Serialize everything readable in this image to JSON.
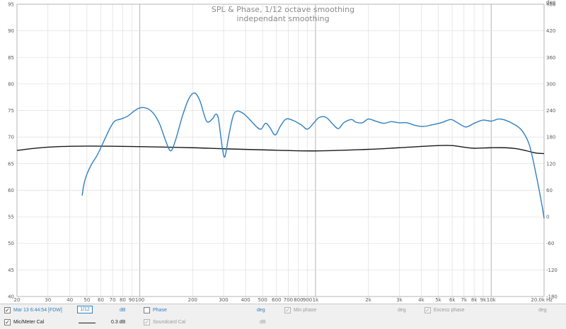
{
  "chart_data": {
    "type": "line",
    "title": "SPL & Phase, 1/12 octave smoothing",
    "subtitle": "independant smoothing",
    "x_scale": "log",
    "xlim": [
      20,
      20000
    ],
    "x_unit": "Hz",
    "x_tick_labels": [
      {
        "value": 20,
        "label": "20"
      },
      {
        "value": 30,
        "label": "30"
      },
      {
        "value": 40,
        "label": "40"
      },
      {
        "value": 50,
        "label": "50"
      },
      {
        "value": 60,
        "label": "60"
      },
      {
        "value": 70,
        "label": "70"
      },
      {
        "value": 80,
        "label": "80"
      },
      {
        "value": 90,
        "label": "90"
      },
      {
        "value": 100,
        "label": "100"
      },
      {
        "value": 200,
        "label": "200"
      },
      {
        "value": 300,
        "label": "300"
      },
      {
        "value": 400,
        "label": "400"
      },
      {
        "value": 500,
        "label": "500"
      },
      {
        "value": 600,
        "label": "600"
      },
      {
        "value": 700,
        "label": "700"
      },
      {
        "value": 800,
        "label": "800"
      },
      {
        "value": 900,
        "label": "900"
      },
      {
        "value": 1000,
        "label": "1k"
      },
      {
        "value": 2000,
        "label": "2k"
      },
      {
        "value": 3000,
        "label": "3k"
      },
      {
        "value": 4000,
        "label": "4k"
      },
      {
        "value": 5000,
        "label": "5k"
      },
      {
        "value": 6000,
        "label": "6k"
      },
      {
        "value": 7000,
        "label": "7k"
      },
      {
        "value": 8000,
        "label": "8k"
      },
      {
        "value": 9000,
        "label": "9k"
      },
      {
        "value": 10000,
        "label": "10k"
      },
      {
        "value": 20000,
        "label": "20.0k"
      }
    ],
    "x_unit_label": "Hz",
    "ylim": [
      40,
      95
    ],
    "y_ticks": [
      40,
      45,
      50,
      55,
      60,
      65,
      70,
      75,
      80,
      85,
      90,
      95
    ],
    "y_right_label": "deg",
    "y_right_lim": [
      -180,
      480
    ],
    "y_right_ticks": [
      -180,
      -120,
      -60,
      0,
      60,
      120,
      180,
      240,
      300,
      360,
      420,
      480
    ],
    "grid": true,
    "series": [
      {
        "name": "Mar 13 6:44:54 [FDW]",
        "color": "#2f7fc0",
        "points": [
          [
            47,
            59
          ],
          [
            48,
            61
          ],
          [
            50,
            63
          ],
          [
            53,
            64.8
          ],
          [
            57,
            66.5
          ],
          [
            60,
            68
          ],
          [
            64,
            70
          ],
          [
            68,
            71.8
          ],
          [
            72,
            73
          ],
          [
            78,
            73.4
          ],
          [
            85,
            73.9
          ],
          [
            92,
            74.8
          ],
          [
            100,
            75.5
          ],
          [
            110,
            75.4
          ],
          [
            120,
            74.4
          ],
          [
            130,
            72.4
          ],
          [
            140,
            69.4
          ],
          [
            150,
            67.4
          ],
          [
            160,
            69.5
          ],
          [
            175,
            74
          ],
          [
            190,
            77.2
          ],
          [
            205,
            78.3
          ],
          [
            220,
            76.8
          ],
          [
            240,
            73
          ],
          [
            260,
            73.5
          ],
          [
            270,
            74.3
          ],
          [
            280,
            73.5
          ],
          [
            295,
            68
          ],
          [
            305,
            66.3
          ],
          [
            320,
            70
          ],
          [
            340,
            74
          ],
          [
            360,
            74.9
          ],
          [
            390,
            74.4
          ],
          [
            420,
            73.4
          ],
          [
            460,
            72
          ],
          [
            490,
            71.5
          ],
          [
            520,
            72.6
          ],
          [
            550,
            71.8
          ],
          [
            590,
            70.4
          ],
          [
            630,
            72
          ],
          [
            680,
            73.4
          ],
          [
            750,
            73.1
          ],
          [
            830,
            72.3
          ],
          [
            900,
            71.5
          ],
          [
            980,
            72.7
          ],
          [
            1050,
            73.7
          ],
          [
            1150,
            73.7
          ],
          [
            1250,
            72.5
          ],
          [
            1350,
            71.6
          ],
          [
            1450,
            72.7
          ],
          [
            1600,
            73.3
          ],
          [
            1700,
            72.8
          ],
          [
            1850,
            72.7
          ],
          [
            2000,
            73.4
          ],
          [
            2200,
            73
          ],
          [
            2450,
            72.6
          ],
          [
            2700,
            72.9
          ],
          [
            3000,
            72.7
          ],
          [
            3300,
            72.7
          ],
          [
            3700,
            72.2
          ],
          [
            4100,
            72
          ],
          [
            4600,
            72.3
          ],
          [
            5200,
            72.7
          ],
          [
            5900,
            73.3
          ],
          [
            6500,
            72.6
          ],
          [
            7200,
            71.9
          ],
          [
            8000,
            72.6
          ],
          [
            9000,
            73.2
          ],
          [
            10000,
            73
          ],
          [
            11000,
            73.4
          ],
          [
            12000,
            73.2
          ],
          [
            13500,
            72.4
          ],
          [
            15000,
            71.2
          ],
          [
            16500,
            68.5
          ],
          [
            18000,
            63
          ],
          [
            19500,
            57
          ],
          [
            20000,
            54.7
          ]
        ]
      },
      {
        "name": "Mic/Meter Cal",
        "color": "#1a1a1a",
        "points": [
          [
            20,
            67.5
          ],
          [
            30,
            68.1
          ],
          [
            50,
            68.3
          ],
          [
            100,
            68.2
          ],
          [
            200,
            68
          ],
          [
            300,
            67.8
          ],
          [
            500,
            67.6
          ],
          [
            1000,
            67.4
          ],
          [
            2000,
            67.7
          ],
          [
            3000,
            68
          ],
          [
            5000,
            68.4
          ],
          [
            6000,
            68.4
          ],
          [
            7000,
            68.1
          ],
          [
            8000,
            67.9
          ],
          [
            10000,
            68
          ],
          [
            12000,
            68
          ],
          [
            14000,
            67.8
          ],
          [
            16000,
            67.4
          ],
          [
            18000,
            67
          ],
          [
            20000,
            66.9
          ]
        ]
      }
    ]
  },
  "legend": {
    "row1": {
      "series_label": "Mar 13 6:44:54 [FDW]",
      "smoothing_label": "1/12",
      "db_label": "dB",
      "phase_label": "Phase",
      "phase_unit": "deg",
      "min_phase_label": "Min phase",
      "min_phase_unit": "deg",
      "excess_phase_label": "Excess phase",
      "excess_phase_unit": "deg"
    },
    "row2": {
      "series_label": "Mic/Meter Cal",
      "offset_label": "0.3 dB",
      "soundcard_label": "Soundcard Cal",
      "soundcard_unit": "dB"
    },
    "checked_mark": "✓"
  }
}
